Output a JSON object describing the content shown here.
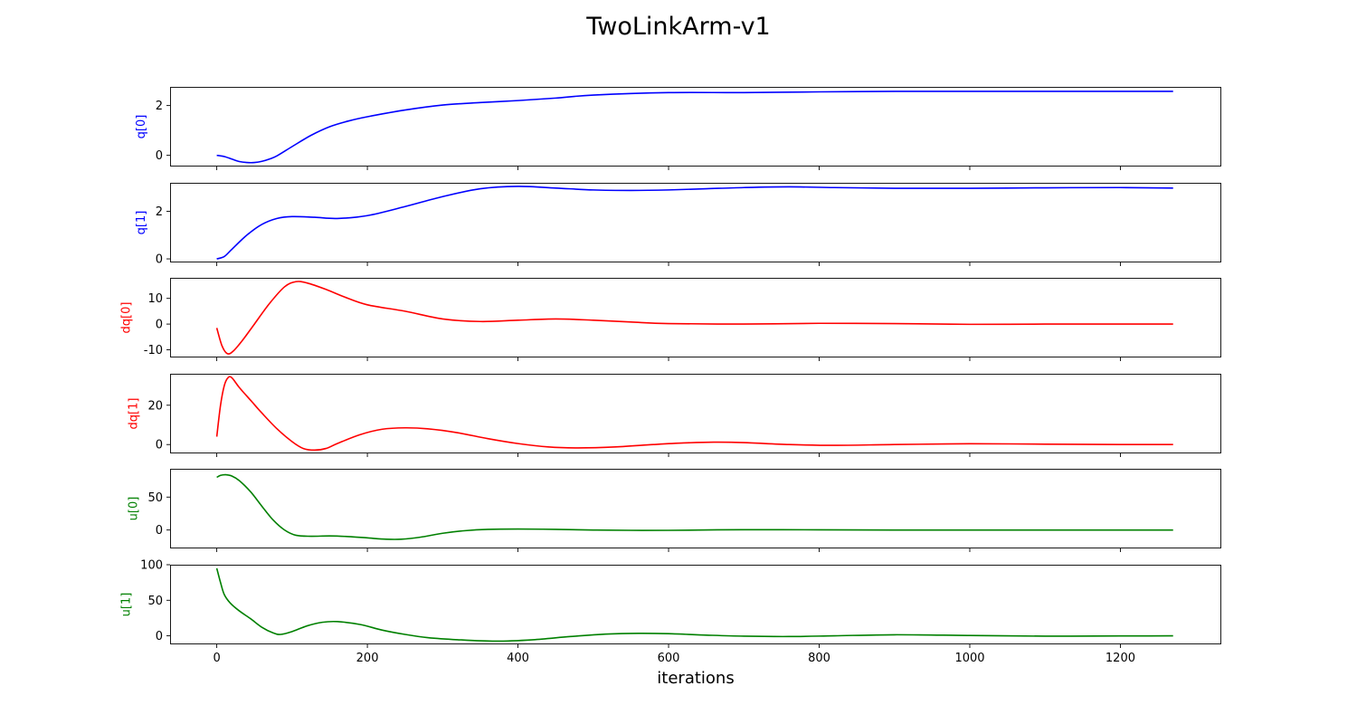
{
  "figure": {
    "title": "TwoLinkArm-v1",
    "xlabel": "iterations",
    "xticks": [
      0,
      200,
      400,
      600,
      800,
      1000,
      1200
    ],
    "xlim": [
      -62,
      1334
    ]
  },
  "chart_data": [
    {
      "type": "line",
      "ylabel": "q[0]",
      "color": "#0000ff",
      "ylim": [
        -0.45,
        2.75
      ],
      "yticks": [
        0,
        2
      ],
      "series": [
        {
          "x": [
            0,
            10,
            20,
            30,
            40,
            50,
            60,
            70,
            80,
            100,
            125,
            150,
            175,
            200,
            250,
            300,
            350,
            400,
            450,
            500,
            600,
            700,
            800,
            900,
            1000,
            1100,
            1200,
            1270
          ],
          "values": [
            0.0,
            -0.05,
            -0.15,
            -0.25,
            -0.29,
            -0.29,
            -0.24,
            -0.15,
            -0.02,
            0.35,
            0.8,
            1.15,
            1.38,
            1.55,
            1.82,
            2.02,
            2.12,
            2.2,
            2.3,
            2.42,
            2.52,
            2.52,
            2.55,
            2.57,
            2.57,
            2.57,
            2.57,
            2.57
          ]
        }
      ]
    },
    {
      "type": "line",
      "ylabel": "q[1]",
      "color": "#0000ff",
      "ylim": [
        -0.15,
        3.2
      ],
      "yticks": [
        0,
        2
      ],
      "series": [
        {
          "x": [
            0,
            10,
            20,
            40,
            60,
            80,
            100,
            130,
            160,
            200,
            250,
            300,
            350,
            400,
            450,
            500,
            550,
            600,
            650,
            700,
            760,
            820,
            900,
            1000,
            1100,
            1200,
            1270
          ],
          "values": [
            0.0,
            0.1,
            0.4,
            1.0,
            1.45,
            1.7,
            1.78,
            1.75,
            1.7,
            1.82,
            2.2,
            2.62,
            2.95,
            3.05,
            2.98,
            2.9,
            2.88,
            2.9,
            2.95,
            3.0,
            3.03,
            3.0,
            2.97,
            2.97,
            2.99,
            3.0,
            2.98
          ]
        }
      ]
    },
    {
      "type": "line",
      "ylabel": "dq[0]",
      "color": "#ff0000",
      "ylim": [
        -13,
        18
      ],
      "yticks": [
        -10,
        0,
        10
      ],
      "series": [
        {
          "x": [
            0,
            7,
            14,
            22,
            35,
            50,
            70,
            90,
            105,
            120,
            145,
            170,
            200,
            250,
            300,
            350,
            400,
            450,
            500,
            550,
            600,
            700,
            800,
            900,
            1000,
            1100,
            1200,
            1270
          ],
          "values": [
            -1.5,
            -8.5,
            -11.5,
            -10.5,
            -6.0,
            0.0,
            8.0,
            14.5,
            16.5,
            16.0,
            13.5,
            10.5,
            7.5,
            5.0,
            2.0,
            1.0,
            1.5,
            2.0,
            1.5,
            0.8,
            0.2,
            0.0,
            0.3,
            0.2,
            -0.1,
            0.0,
            0.0,
            0.0
          ]
        }
      ]
    },
    {
      "type": "line",
      "ylabel": "dq[1]",
      "color": "#ff0000",
      "ylim": [
        -4.5,
        36
      ],
      "yticks": [
        0,
        20
      ],
      "series": [
        {
          "x": [
            0,
            5,
            10,
            15,
            20,
            30,
            45,
            60,
            80,
            100,
            115,
            130,
            145,
            160,
            190,
            220,
            250,
            280,
            320,
            360,
            400,
            440,
            480,
            530,
            580,
            620,
            660,
            700,
            760,
            820,
            900,
            1000,
            1100,
            1200,
            1270
          ],
          "values": [
            4.0,
            20.0,
            30.0,
            34.0,
            34.0,
            29.0,
            22.5,
            16.0,
            8.0,
            1.5,
            -2.0,
            -2.8,
            -2.0,
            0.5,
            5.0,
            7.8,
            8.5,
            8.0,
            6.0,
            3.0,
            0.5,
            -1.2,
            -1.7,
            -1.2,
            0.0,
            0.8,
            1.2,
            1.0,
            0.0,
            -0.4,
            0.0,
            0.4,
            0.2,
            0.0,
            0.0
          ]
        }
      ]
    },
    {
      "type": "line",
      "ylabel": "u[0]",
      "color": "#008000",
      "ylim": [
        -28,
        93
      ],
      "yticks": [
        0,
        50
      ],
      "series": [
        {
          "x": [
            0,
            5,
            12,
            20,
            30,
            45,
            60,
            75,
            90,
            105,
            125,
            150,
            175,
            200,
            225,
            245,
            270,
            300,
            330,
            360,
            400,
            450,
            500,
            550,
            600,
            700,
            800,
            900,
            1000,
            1100,
            1200,
            1270
          ],
          "values": [
            80.0,
            83.0,
            84.0,
            82.0,
            75.0,
            58.0,
            36.0,
            15.0,
            0.0,
            -8.0,
            -9.5,
            -9.0,
            -10.0,
            -12.0,
            -14.0,
            -14.0,
            -11.0,
            -5.0,
            -1.0,
            1.0,
            1.5,
            1.0,
            0.0,
            -0.5,
            -0.5,
            0.5,
            0.3,
            0.0,
            0.0,
            0.0,
            0.0,
            0.0
          ]
        }
      ]
    },
    {
      "type": "line",
      "ylabel": "u[1]",
      "color": "#008000",
      "ylim": [
        -12,
        100
      ],
      "yticks": [
        0,
        50,
        100
      ],
      "series": [
        {
          "x": [
            0,
            5,
            10,
            18,
            30,
            45,
            60,
            75,
            85,
            100,
            120,
            140,
            160,
            190,
            220,
            250,
            280,
            320,
            370,
            420,
            470,
            520,
            560,
            600,
            650,
            700,
            760,
            820,
            900,
            1000,
            1100,
            1200,
            1270
          ],
          "values": [
            95.0,
            75.0,
            58.0,
            46.0,
            35.0,
            24.0,
            12.0,
            4.0,
            2.0,
            6.0,
            14.0,
            19.0,
            20.0,
            16.0,
            8.0,
            2.0,
            -2.5,
            -5.5,
            -7.5,
            -5.5,
            -1.0,
            2.5,
            3.5,
            3.0,
            1.0,
            -0.5,
            -1.0,
            0.0,
            1.5,
            0.5,
            -0.5,
            -0.2,
            0.0
          ]
        }
      ]
    }
  ]
}
